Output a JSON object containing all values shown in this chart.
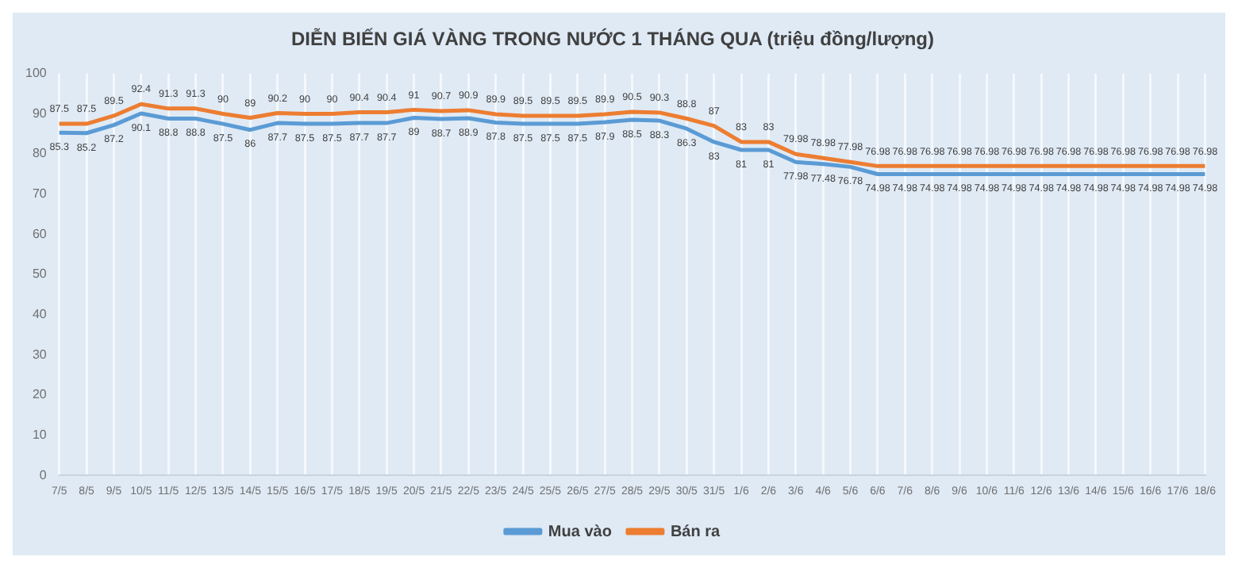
{
  "chart_data": {
    "type": "line",
    "title": "DIỄN BIẾN GIÁ VÀNG TRONG NƯỚC 1 THÁNG QUA (triệu đồng/lượng)",
    "categories": [
      "7/5",
      "8/5",
      "9/5",
      "10/5",
      "11/5",
      "12/5",
      "13/5",
      "14/5",
      "15/5",
      "16/5",
      "17/5",
      "18/5",
      "19/5",
      "20/5",
      "21/5",
      "22/5",
      "23/5",
      "24/5",
      "25/5",
      "26/5",
      "27/5",
      "28/5",
      "29/5",
      "30/5",
      "31/5",
      "1/6",
      "2/6",
      "3/6",
      "4/6",
      "5/6",
      "6/6",
      "7/6",
      "8/6",
      "9/6",
      "10/6",
      "11/6",
      "12/6",
      "13/6",
      "14/6",
      "15/6",
      "16/6",
      "17/6",
      "18/6"
    ],
    "series": [
      {
        "name": "Mua vào",
        "color": "#5b9bd5",
        "values": [
          85.3,
          85.2,
          87.2,
          90.1,
          88.8,
          88.8,
          87.5,
          86,
          87.7,
          87.5,
          87.5,
          87.7,
          87.7,
          89,
          88.7,
          88.9,
          87.8,
          87.5,
          87.5,
          87.5,
          87.9,
          88.5,
          88.3,
          86.3,
          83,
          81,
          81,
          77.98,
          77.48,
          76.78,
          74.98,
          74.98,
          74.98,
          74.98,
          74.98,
          74.98,
          74.98,
          74.98,
          74.98,
          74.98,
          74.98,
          74.98,
          74.98
        ]
      },
      {
        "name": "Bán ra",
        "color": "#ed7d31",
        "values": [
          87.5,
          87.5,
          89.5,
          92.4,
          91.3,
          91.3,
          90,
          89,
          90.2,
          90,
          90,
          90.4,
          90.4,
          91,
          90.7,
          90.9,
          89.9,
          89.5,
          89.5,
          89.5,
          89.9,
          90.5,
          90.3,
          88.8,
          87,
          83,
          83,
          79.98,
          78.98,
          77.98,
          76.98,
          76.98,
          76.98,
          76.98,
          76.98,
          76.98,
          76.98,
          76.98,
          76.98,
          76.98,
          76.98,
          76.98,
          76.98
        ]
      }
    ],
    "ylim": [
      0,
      100
    ],
    "yticks": [
      0,
      10,
      20,
      30,
      40,
      50,
      60,
      70,
      80,
      90,
      100
    ],
    "grid": "x",
    "legend": "bottom",
    "data_labels": true,
    "marker": "none",
    "line_style": "solid"
  }
}
